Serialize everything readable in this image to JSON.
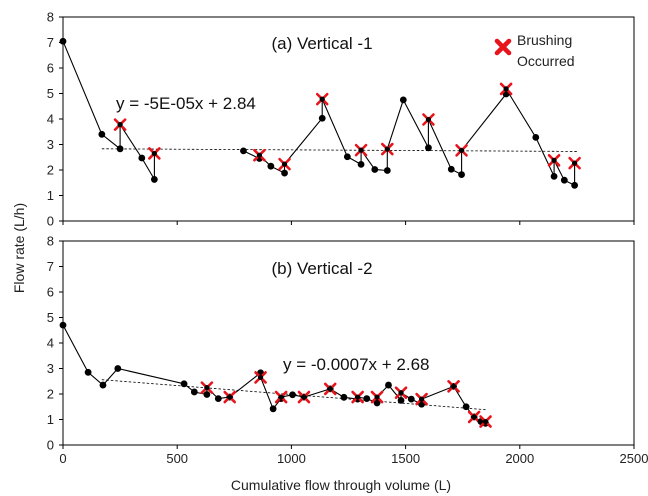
{
  "figure": {
    "ylabel": "Flow rate (L/h)",
    "xlabel": "Cumulative flow through volume (L)",
    "legend": {
      "label_line1": "Brushing",
      "label_line2": "Occurred",
      "marker_color": "#e8141c",
      "placement": "top-right"
    }
  },
  "chart_data": [
    {
      "type": "line",
      "title": "(a) Vertical -1",
      "xlim": [
        0,
        2500
      ],
      "ylim": [
        0,
        8
      ],
      "xticks": [
        0,
        500,
        1000,
        1500,
        2000,
        2500
      ],
      "yticks": [
        0,
        1,
        2,
        3,
        4,
        5,
        6,
        7,
        8
      ],
      "trendline": {
        "label": "y = -5E-05x + 2.84",
        "x_range": [
          170,
          2250
        ],
        "slope": -5e-05,
        "intercept": 2.84
      },
      "segments": [
        {
          "x": [
            0,
            170,
            250,
            250,
            345,
            400,
            400
          ],
          "y": [
            7.05,
            3.4,
            2.83,
            3.78,
            2.47,
            1.63,
            2.65
          ],
          "brushed": [
            false,
            false,
            false,
            true,
            false,
            false,
            true
          ]
        },
        {
          "x": [
            790,
            860,
            860,
            910,
            970,
            970,
            1135,
            1135,
            1245,
            1305,
            1305,
            1365,
            1420,
            1420,
            1490,
            1600,
            1600,
            1700,
            1745,
            1745,
            1940,
            1940,
            2070,
            2150,
            2150,
            2195,
            2240,
            2240
          ],
          "y": [
            2.75,
            2.45,
            2.58,
            2.15,
            1.88,
            2.23,
            4.03,
            4.78,
            2.52,
            2.22,
            2.78,
            2.02,
            1.98,
            2.82,
            4.75,
            2.87,
            3.98,
            2.03,
            1.82,
            2.77,
            4.98,
            5.18,
            3.28,
            1.75,
            2.38,
            1.6,
            1.4,
            2.27
          ],
          "brushed": [
            false,
            false,
            true,
            false,
            false,
            true,
            false,
            true,
            false,
            false,
            true,
            false,
            false,
            true,
            false,
            false,
            true,
            false,
            false,
            true,
            false,
            true,
            false,
            false,
            true,
            false,
            false,
            true
          ]
        }
      ]
    },
    {
      "type": "line",
      "title": "(b) Vertical -2",
      "xlim": [
        0,
        2500
      ],
      "ylim": [
        0,
        8
      ],
      "xticks": [
        0,
        500,
        1000,
        1500,
        2000,
        2500
      ],
      "yticks": [
        0,
        1,
        2,
        3,
        4,
        5,
        6,
        7,
        8
      ],
      "trendline": {
        "label": "y = -0.0007x + 2.68",
        "x_range": [
          170,
          1850
        ],
        "slope": -0.0007,
        "intercept": 2.68
      },
      "segments": [
        {
          "x": [
            0,
            110,
            175,
            240,
            530,
            575,
            630,
            630,
            680,
            730,
            730,
            865,
            865,
            920,
            955,
            955,
            1005,
            1055,
            1055,
            1170,
            1170,
            1230,
            1290,
            1290,
            1330,
            1375,
            1375,
            1425,
            1480,
            1480,
            1525,
            1570,
            1570,
            1710,
            1710,
            1765,
            1800,
            1800,
            1830,
            1850,
            1850
          ],
          "y": [
            4.7,
            2.85,
            2.35,
            3.0,
            2.4,
            2.08,
            1.98,
            2.25,
            1.82,
            1.88,
            1.88,
            2.83,
            2.65,
            1.42,
            1.82,
            1.88,
            1.97,
            1.88,
            1.88,
            2.2,
            2.2,
            1.87,
            1.8,
            1.88,
            1.82,
            1.65,
            1.88,
            2.35,
            1.75,
            2.05,
            1.8,
            1.6,
            1.8,
            2.3,
            2.3,
            1.5,
            1.1,
            1.1,
            0.92,
            0.85,
            0.92
          ],
          "brushed": [
            false,
            false,
            false,
            false,
            false,
            false,
            false,
            true,
            false,
            false,
            true,
            false,
            true,
            false,
            false,
            true,
            false,
            false,
            true,
            false,
            true,
            false,
            false,
            true,
            false,
            false,
            true,
            false,
            false,
            true,
            false,
            false,
            true,
            false,
            true,
            false,
            false,
            true,
            false,
            false,
            true
          ]
        }
      ]
    }
  ]
}
